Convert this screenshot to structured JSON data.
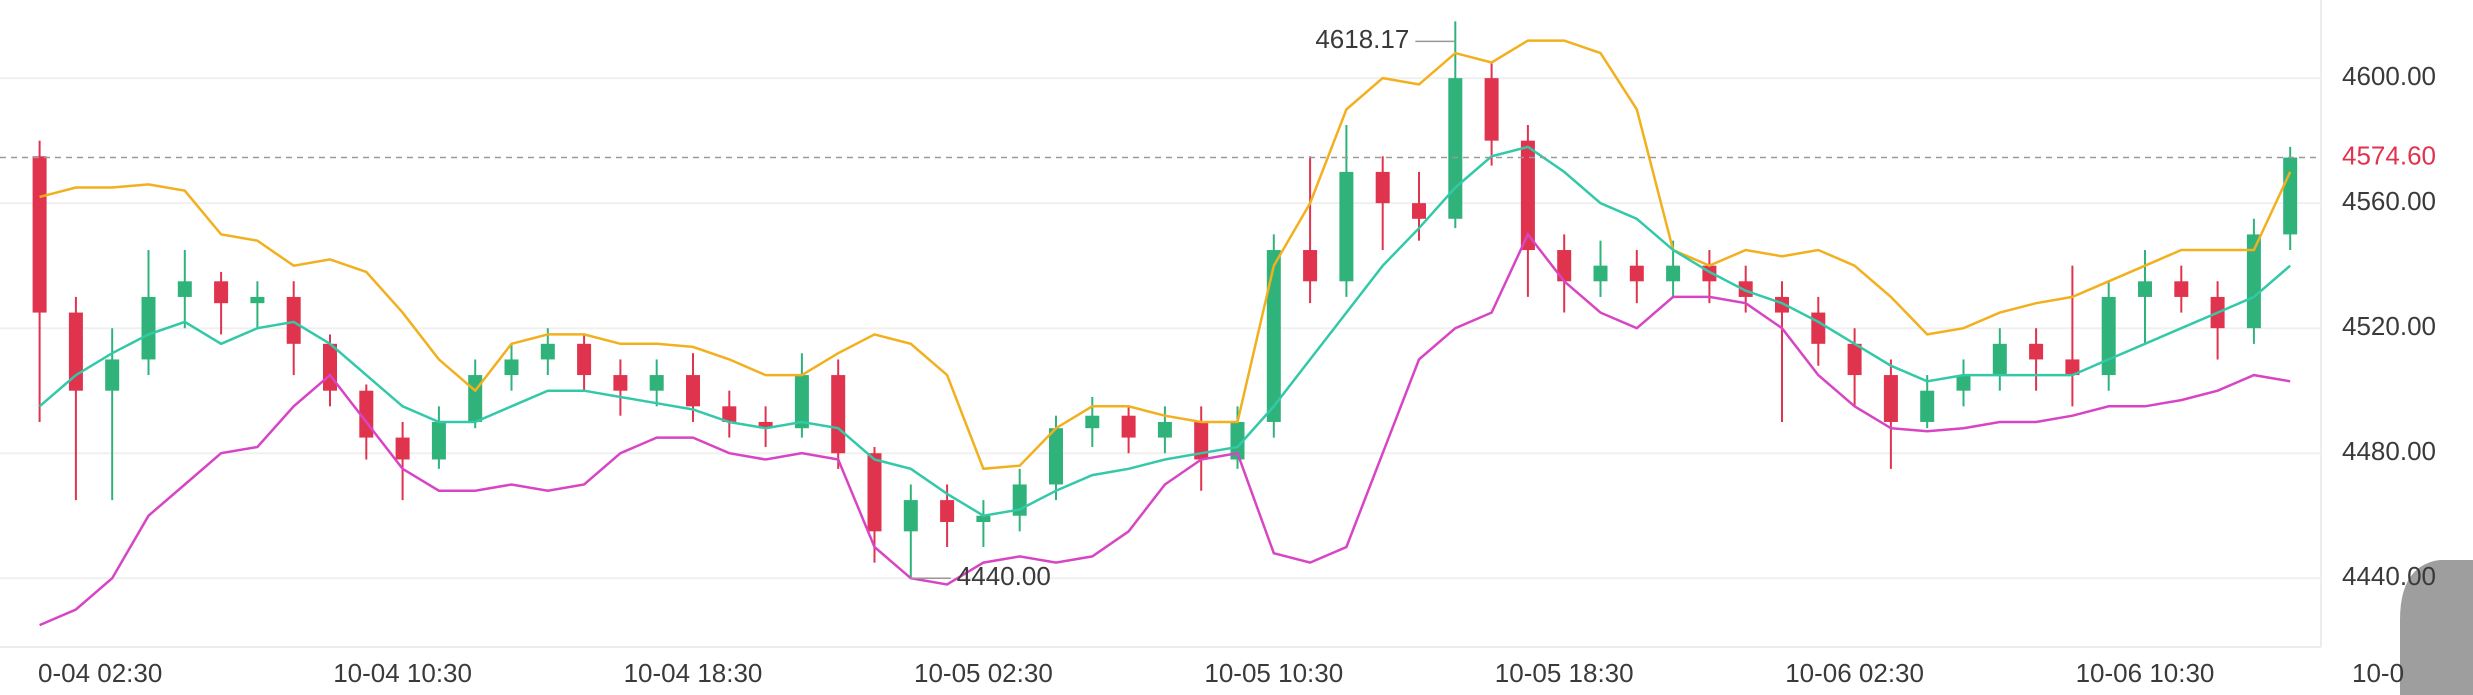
{
  "chart_data": {
    "type": "candlestick",
    "categories": [
      null,
      null,
      "0-04 02:30",
      null,
      null,
      null,
      null,
      null,
      null,
      null,
      "10-04 10:30",
      null,
      null,
      null,
      null,
      null,
      null,
      null,
      "10-04 18:30",
      null,
      null,
      null,
      null,
      null,
      null,
      null,
      "10-05 02:30",
      null,
      null,
      null,
      null,
      null,
      null,
      null,
      "10-05 10:30",
      null,
      null,
      null,
      null,
      null,
      null,
      null,
      "10-05 18:30",
      null,
      null,
      null,
      null,
      null,
      null,
      null,
      "10-06 02:30",
      null,
      null,
      null,
      null,
      null,
      null,
      null,
      "10-06 10:30",
      null,
      null,
      null,
      null,
      null,
      null,
      null,
      "10-0"
    ],
    "open": [
      4575,
      4525,
      4500,
      4510,
      4530,
      4535,
      4528,
      4530,
      4515,
      4500,
      4485,
      4478,
      4490,
      4505,
      4510,
      4515,
      4505,
      4500,
      4505,
      4495,
      4490,
      4488,
      4505,
      4480,
      4455,
      4465,
      4458,
      4460,
      4470,
      4488,
      4492,
      4485,
      4490,
      4478,
      4490,
      4545,
      4535,
      4570,
      4560,
      4555,
      4600,
      4580,
      4545,
      4535,
      4540,
      4535,
      4540,
      4535,
      4530,
      4525,
      4515,
      4505,
      4490,
      4500,
      4505,
      4515,
      4510,
      4505,
      4530,
      4535,
      4530,
      4520,
      4550,
      null,
      null,
      null,
      null
    ],
    "high": [
      4580,
      4530,
      4520,
      4545,
      4545,
      4538,
      4535,
      4535,
      4518,
      4502,
      4490,
      4495,
      4510,
      4515,
      4520,
      4518,
      4510,
      4510,
      4512,
      4500,
      4495,
      4512,
      4510,
      4482,
      4470,
      4470,
      4465,
      4475,
      4492,
      4498,
      4495,
      4495,
      4495,
      4495,
      4550,
      4575,
      4585,
      4575,
      4570,
      4618.17,
      4605,
      4585,
      4550,
      4548,
      4545,
      4548,
      4545,
      4540,
      4535,
      4530,
      4520,
      4510,
      4505,
      4510,
      4520,
      4520,
      4540,
      4535,
      4545,
      4540,
      4535,
      4555,
      4578,
      null,
      null,
      null,
      null
    ],
    "low": [
      4490,
      4465,
      4465,
      4505,
      4520,
      4518,
      4520,
      4505,
      4495,
      4478,
      4465,
      4475,
      4488,
      4500,
      4505,
      4500,
      4492,
      4495,
      4490,
      4485,
      4482,
      4485,
      4475,
      4445,
      4440,
      4450,
      4450,
      4455,
      4465,
      4482,
      4480,
      4480,
      4468,
      4475,
      4485,
      4528,
      4530,
      4545,
      4548,
      4552,
      4572,
      4530,
      4525,
      4530,
      4528,
      4530,
      4528,
      4525,
      4490,
      4508,
      4495,
      4475,
      4488,
      4495,
      4500,
      4500,
      4495,
      4500,
      4515,
      4525,
      4510,
      4515,
      4545,
      null,
      null,
      null,
      null
    ],
    "close": [
      4525,
      4500,
      4510,
      4530,
      4535,
      4528,
      4530,
      4515,
      4500,
      4485,
      4478,
      4490,
      4505,
      4510,
      4515,
      4505,
      4500,
      4505,
      4495,
      4490,
      4488,
      4505,
      4480,
      4455,
      4465,
      4458,
      4460,
      4470,
      4488,
      4492,
      4485,
      4490,
      4478,
      4490,
      4545,
      4535,
      4570,
      4560,
      4555,
      4600,
      4580,
      4545,
      4535,
      4540,
      4535,
      4540,
      4535,
      4530,
      4525,
      4515,
      4505,
      4490,
      4500,
      4505,
      4515,
      4510,
      4505,
      4530,
      4535,
      4530,
      4520,
      4550,
      4574.6,
      null,
      null,
      null,
      null
    ],
    "up_color": "#2fb37a",
    "down_color": "#e0334e",
    "bands": [
      {
        "color": "#f2b01e",
        "values": [
          4562,
          4565,
          4565,
          4566,
          4564,
          4550,
          4548,
          4540,
          4542,
          4538,
          4525,
          4510,
          4500,
          4515,
          4518,
          4518,
          4515,
          4515,
          4514,
          4510,
          4505,
          4505,
          4512,
          4518,
          4515,
          4505,
          4475,
          4476,
          4488,
          4495,
          4495,
          4492,
          4490,
          4490,
          4540,
          4560,
          4590,
          4600,
          4598,
          4608,
          4605,
          4612,
          4612,
          4608,
          4590,
          4545,
          4540,
          4545,
          4543,
          4545,
          4540,
          4530,
          4518,
          4520,
          4525,
          4528,
          4530,
          4535,
          4540,
          4545,
          4545,
          4545,
          4570,
          null,
          null,
          null,
          null
        ]
      },
      {
        "color": "#33c9a8",
        "values": [
          4495,
          4505,
          4512,
          4518,
          4522,
          4515,
          4520,
          4522,
          4515,
          4505,
          4495,
          4490,
          4490,
          4495,
          4500,
          4500,
          4498,
          4496,
          4494,
          4490,
          4488,
          4490,
          4488,
          4478,
          4475,
          4467,
          4460,
          4462,
          4468,
          4473,
          4475,
          4478,
          4480,
          4482,
          4495,
          4510,
          4525,
          4540,
          4552,
          4565,
          4575,
          4578,
          4570,
          4560,
          4555,
          4545,
          4538,
          4532,
          4528,
          4522,
          4515,
          4508,
          4503,
          4505,
          4505,
          4505,
          4505,
          4510,
          4515,
          4520,
          4525,
          4530,
          4540,
          null,
          null,
          null,
          null
        ]
      },
      {
        "color": "#d845c4",
        "values": [
          4425,
          4430,
          4440,
          4460,
          4470,
          4480,
          4482,
          4495,
          4505,
          4490,
          4475,
          4468,
          4468,
          4470,
          4468,
          4470,
          4480,
          4485,
          4485,
          4480,
          4478,
          4480,
          4478,
          4450,
          4440,
          4438,
          4445,
          4447,
          4445,
          4447,
          4455,
          4470,
          4478,
          4480,
          4448,
          4445,
          4450,
          4480,
          4510,
          4520,
          4525,
          4550,
          4535,
          4525,
          4520,
          4530,
          4530,
          4528,
          4520,
          4505,
          4495,
          4488,
          4487,
          4488,
          4490,
          4490,
          4492,
          4495,
          4495,
          4497,
          4500,
          4505,
          4503,
          null,
          null,
          null,
          null
        ]
      }
    ],
    "ylim": [
      4418,
      4625
    ],
    "yticks": [
      {
        "value": 4440,
        "label": "4440.00"
      },
      {
        "value": 4480,
        "label": "4480.00"
      },
      {
        "value": 4520,
        "label": "4520.00"
      },
      {
        "value": 4560,
        "label": "4560.00"
      },
      {
        "value": 4600,
        "label": "4600.00"
      }
    ],
    "grid": true,
    "max_label": {
      "value": 4618.17,
      "label": "4618.17"
    },
    "min_label": {
      "value": 4440,
      "label": "4440.00"
    },
    "last_price": {
      "value": 4574.6,
      "label": "4574.60",
      "color": "#e0334e"
    }
  }
}
